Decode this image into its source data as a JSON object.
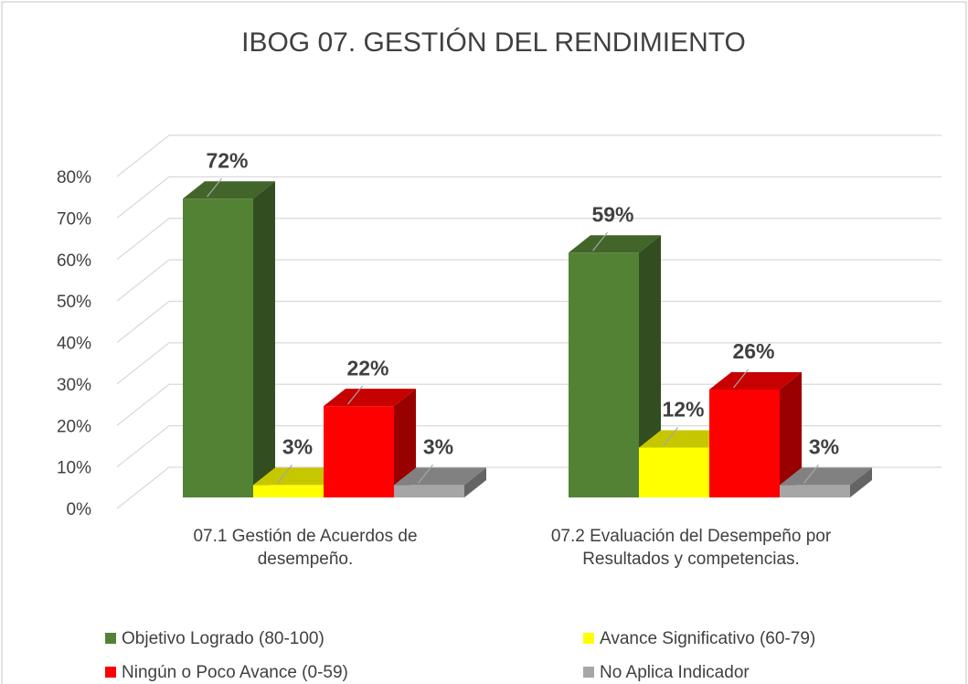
{
  "chart_data": {
    "type": "bar3d",
    "title": "IBOG 07. GESTIÓN DEL RENDIMIENTO",
    "categories": [
      "07.1 Gestión de Acuerdos de desempeño.",
      "07.2 Evaluación del Desempeño por Resultados y competencias."
    ],
    "series": [
      {
        "name": "Objetivo Logrado (80-100)",
        "color": "#548235",
        "values": [
          72,
          59
        ],
        "value_labels": [
          "72%",
          "59%"
        ]
      },
      {
        "name": "Avance Significativo (60-79)",
        "color": "#ffff00",
        "values": [
          3,
          12
        ],
        "value_labels": [
          "3%",
          "12%"
        ]
      },
      {
        "name": "Ningún o Poco Avance (0-59)",
        "color": "#ff0000",
        "values": [
          22,
          26
        ],
        "value_labels": [
          "22%",
          "26%"
        ]
      },
      {
        "name": "No Aplica Indicador",
        "color": "#a6a6a6",
        "values": [
          3,
          3
        ],
        "value_labels": [
          "3%",
          "3%"
        ]
      }
    ],
    "ylim": [
      0,
      80
    ],
    "yticks": [
      {
        "value": 0,
        "label": "0%"
      },
      {
        "value": 10,
        "label": "10%"
      },
      {
        "value": 20,
        "label": "20%"
      },
      {
        "value": 30,
        "label": "30%"
      },
      {
        "value": 40,
        "label": "40%"
      },
      {
        "value": 50,
        "label": "50%"
      },
      {
        "value": 60,
        "label": "60%"
      },
      {
        "value": 70,
        "label": "70%"
      },
      {
        "value": 80,
        "label": "80%"
      }
    ],
    "grid": true,
    "legend": "bottom"
  }
}
